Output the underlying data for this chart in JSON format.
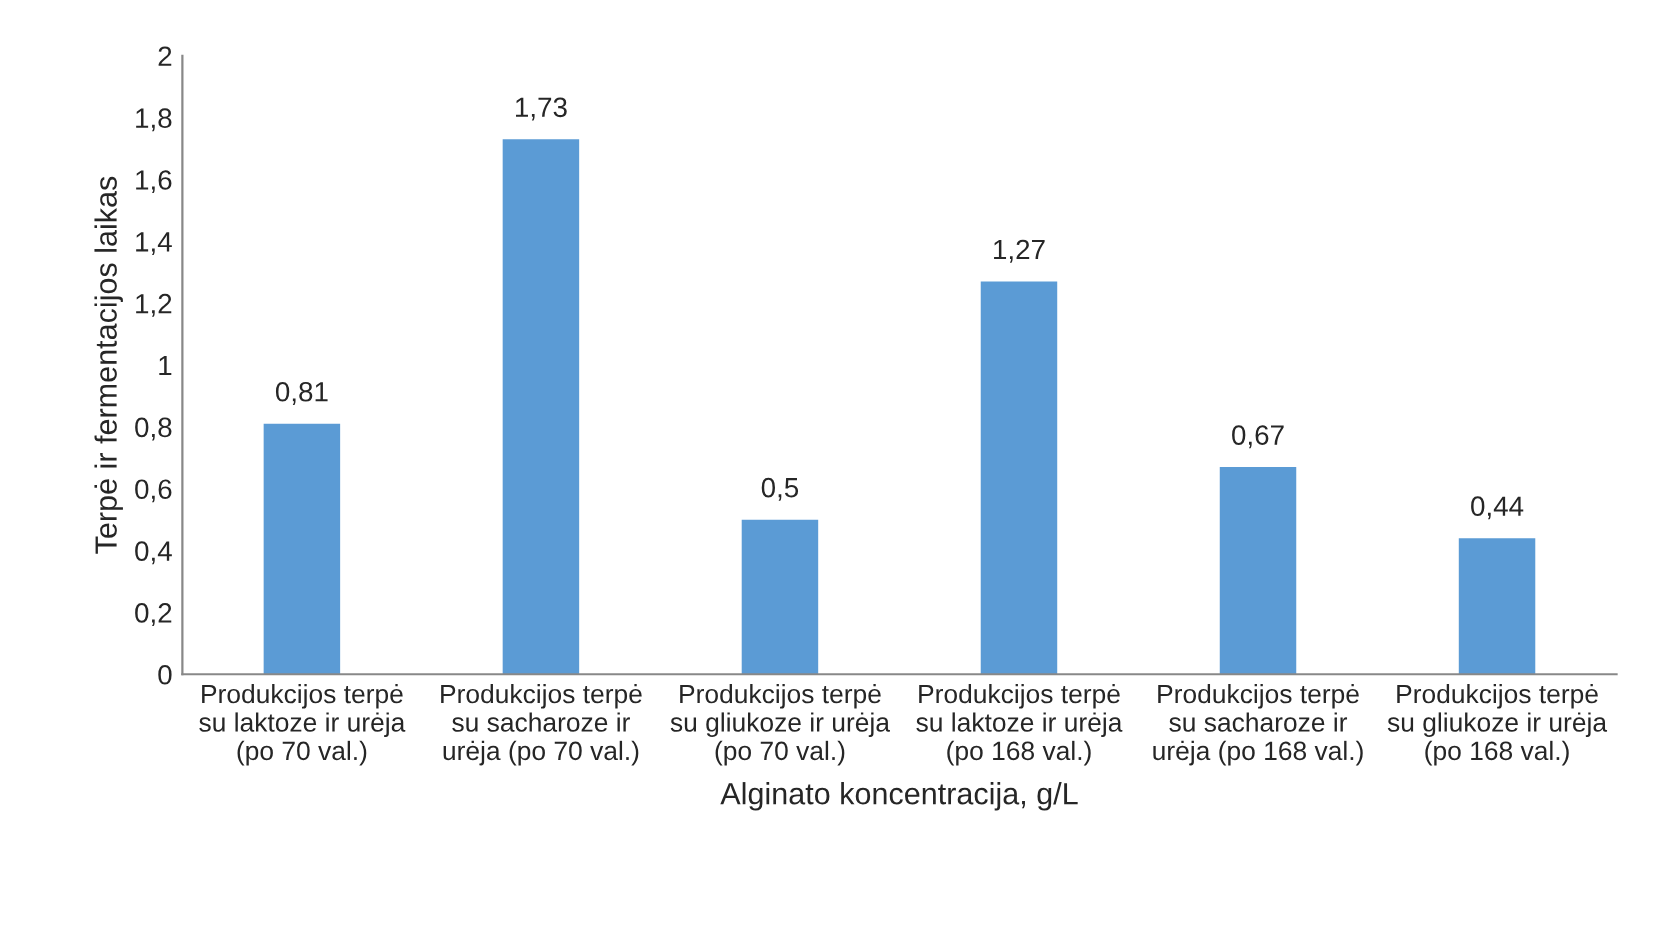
{
  "chart_data": {
    "type": "bar",
    "xlabel": "Alginato koncentracija, g/L",
    "ylabel": "Terpė ir fermentacijos laikas",
    "categories": [
      "Produkcijos terpė\nsu laktoze ir urėja\n(po 70 val.)",
      "Produkcijos terpė\nsu sacharoze ir\nurėja (po 70 val.)",
      "Produkcijos terpė\nsu gliukoze ir urėja\n(po 70 val.)",
      "Produkcijos terpė\nsu laktoze ir urėja\n(po 168 val.)",
      "Produkcijos terpė\nsu sacharoze ir\nurėja (po 168 val.)",
      "Produkcijos terpė\nsu gliukoze ir urėja\n(po 168 val.)"
    ],
    "values": [
      0.81,
      1.73,
      0.5,
      1.27,
      0.67,
      0.44
    ],
    "value_labels": [
      "0,81",
      "1,73",
      "0,5",
      "1,27",
      "0,67",
      "0,44"
    ],
    "color": "#5b9bd5",
    "ylim": [
      0,
      2
    ],
    "yticks": [
      0,
      {
        "value": 0.2,
        "label": "0,2"
      },
      {
        "value": 0.4,
        "label": "0,4"
      },
      {
        "value": 0.6,
        "label": "0,6"
      },
      {
        "value": 0.8,
        "label": "0,8"
      },
      1,
      {
        "value": 1.2,
        "label": "1,2"
      },
      {
        "value": 1.4,
        "label": "1,4"
      },
      {
        "value": 1.6,
        "label": "1,6"
      },
      {
        "value": 1.8,
        "label": "1,8"
      },
      2
    ],
    "grid": false
  }
}
